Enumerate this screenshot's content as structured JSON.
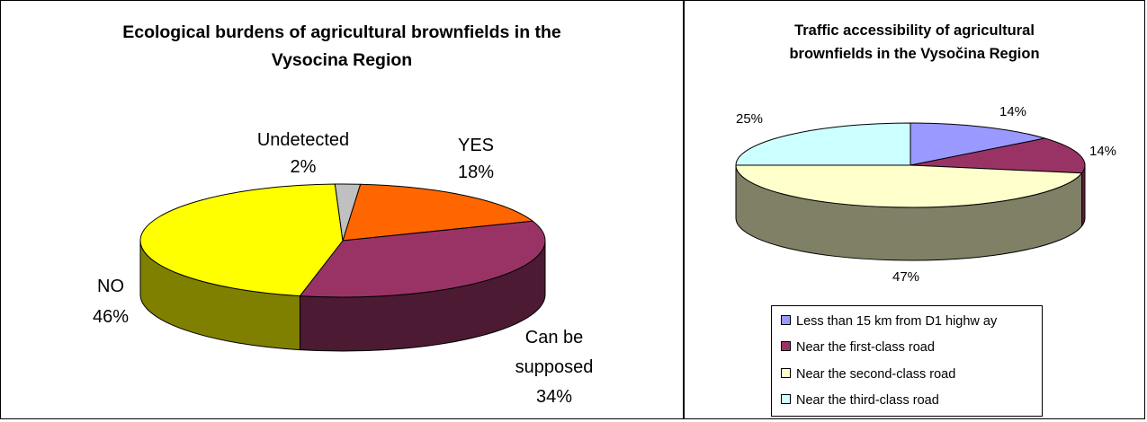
{
  "chart_data": [
    {
      "type": "pie",
      "title": "Ecological burdens of agricultural brownfields in the Vysocina Region",
      "title_lines": [
        "Ecological burdens of agricultural brownfields in the",
        "Vysocina Region"
      ],
      "slices": [
        {
          "label": "YES",
          "value": 18,
          "value_label": "18%",
          "color": "#ff6600",
          "side_color": "#b34700"
        },
        {
          "label": "Can be supposed",
          "label_lines": [
            "Can be",
            "supposed"
          ],
          "value": 34,
          "value_label": "34%",
          "color": "#993366",
          "side_color": "#4d1a33"
        },
        {
          "label": "NO",
          "value": 46,
          "value_label": "46%",
          "color": "#ffff00",
          "side_color": "#808000"
        },
        {
          "label": "Undetected",
          "value": 2,
          "value_label": "2%",
          "color": "#c0c0c0",
          "side_color": "#808080"
        }
      ],
      "legend": "none",
      "style": "3d-pie"
    },
    {
      "type": "pie",
      "title": "Traffic accessibility of agricultural brownfields in the Vysočina Region",
      "title_lines": [
        "Traffic accessibility of agricultural",
        "brownfields in the Vysočina Region"
      ],
      "slices": [
        {
          "label": "Less than 15 km from D1 highw ay",
          "value": 14,
          "value_label": "14%",
          "color": "#9999ff",
          "side_color": "#5c5c99"
        },
        {
          "label": "Near the first-class road",
          "value": 14,
          "value_label": "14%",
          "color": "#993366",
          "side_color": "#5c1f3d"
        },
        {
          "label": "Near the second-class road",
          "value": 47,
          "value_label": "47%",
          "color": "#ffffcc",
          "side_color": "#808066"
        },
        {
          "label": "Near the third-class road",
          "value": 25,
          "value_label": "25%",
          "color": "#ccffff",
          "side_color": "#7a9999"
        }
      ],
      "legend": "bottom",
      "style": "3d-pie"
    }
  ]
}
